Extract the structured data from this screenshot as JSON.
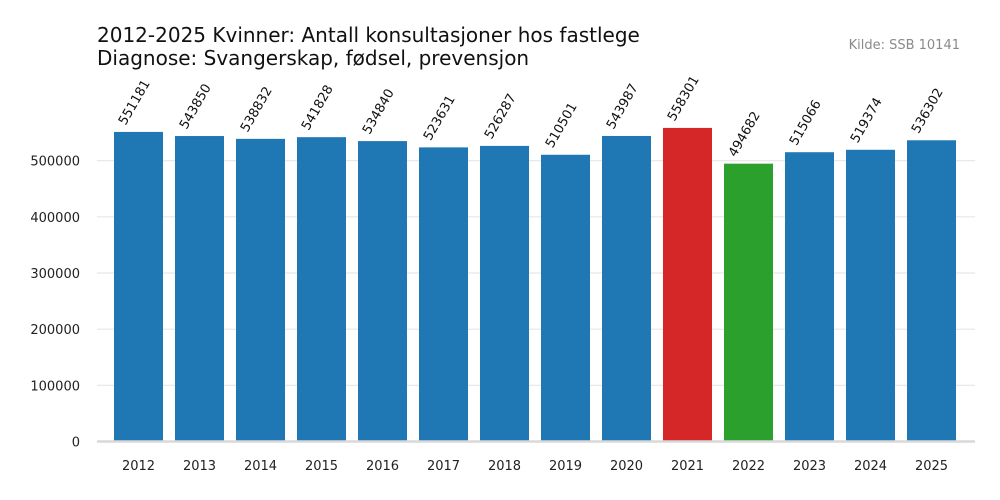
{
  "header": {
    "title_line1": "2012-2025 Kvinner: Antall konsultasjoner hos fastlege",
    "title_line2": "Diagnose: Svangerskap, fødsel, prevensjon",
    "source": "Kilde: SSB 10141"
  },
  "chart_data": {
    "type": "bar",
    "title": "2012-2025 Kvinner: Antall konsultasjoner hos fastlege\nDiagnose: Svangerskap, fødsel, prevensjon",
    "categories": [
      "2012",
      "2013",
      "2014",
      "2015",
      "2016",
      "2017",
      "2018",
      "2019",
      "2020",
      "2021",
      "2022",
      "2023",
      "2024",
      "2025"
    ],
    "values": [
      551181,
      543850,
      538832,
      541828,
      534840,
      523631,
      526287,
      510501,
      543987,
      558301,
      494682,
      515066,
      519374,
      536302
    ],
    "colors": [
      "#1f77b4",
      "#1f77b4",
      "#1f77b4",
      "#1f77b4",
      "#1f77b4",
      "#1f77b4",
      "#1f77b4",
      "#1f77b4",
      "#1f77b4",
      "#d62728",
      "#2ca02c",
      "#1f77b4",
      "#1f77b4",
      "#1f77b4"
    ],
    "yticks": [
      0,
      100000,
      200000,
      300000,
      400000,
      500000
    ],
    "ylim": [
      0,
      600000
    ],
    "grid": true,
    "xlabel": "",
    "ylabel": ""
  }
}
